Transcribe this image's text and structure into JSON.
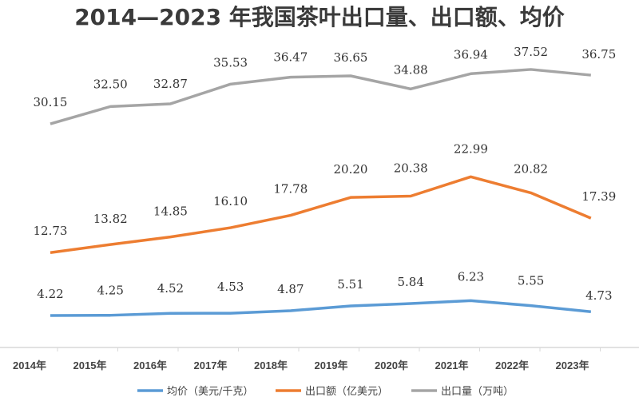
{
  "title": "2014—2023 年我国茶叶出口量、出口额、均价",
  "chart_data": {
    "type": "line",
    "title": "2014—2023 年我国茶叶出口量、出口额、均价",
    "categories": [
      "2014年",
      "2015年",
      "2016年",
      "2017年",
      "2018年",
      "2019年",
      "2020年",
      "2021年",
      "2022年",
      "2023年"
    ],
    "series": [
      {
        "name": "均价（美元/千克）",
        "color": "#5b9bd5",
        "values": [
          4.22,
          4.25,
          4.52,
          4.53,
          4.87,
          5.51,
          5.84,
          6.23,
          5.55,
          4.73
        ]
      },
      {
        "name": "出口额（亿美元）",
        "color": "#ed7d31",
        "values": [
          12.73,
          13.82,
          14.85,
          16.1,
          17.78,
          20.2,
          20.38,
          22.99,
          20.82,
          17.39
        ]
      },
      {
        "name": "出口量（万吨）",
        "color": "#a5a5a5",
        "values": [
          30.15,
          32.5,
          32.87,
          35.53,
          36.47,
          36.65,
          34.88,
          36.94,
          37.52,
          36.75
        ]
      }
    ],
    "data_labels": true,
    "grid": false,
    "legend": "bottom"
  }
}
